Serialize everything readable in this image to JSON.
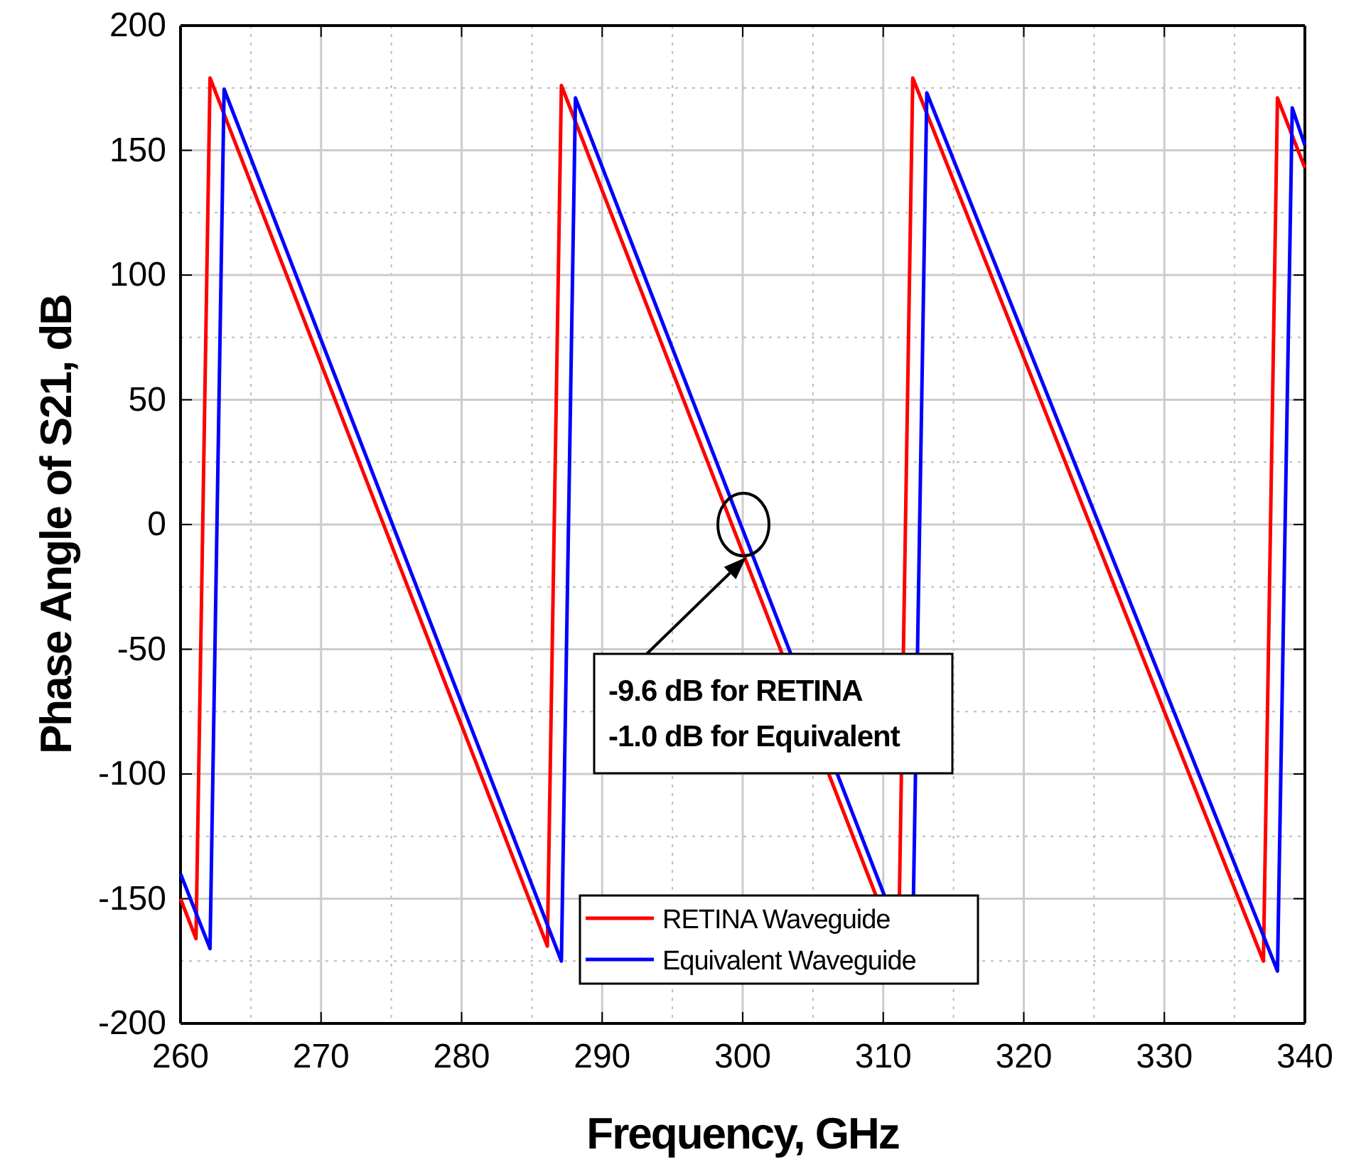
{
  "chart_data": {
    "type": "line",
    "xlabel": "Frequency, GHz",
    "ylabel": "Phase Angle of S21, dB",
    "xlim": [
      260,
      340
    ],
    "xticks": [
      260,
      270,
      280,
      290,
      300,
      310,
      320,
      330,
      340
    ],
    "ylim": [
      -200,
      200
    ],
    "yticks": [
      -200,
      -150,
      -100,
      -50,
      0,
      50,
      100,
      150,
      200
    ],
    "grid": true,
    "legend": "bottom",
    "line_style": "solid",
    "marker": "none",
    "series": [
      {
        "name": "RETINA Waveguide",
        "color": "#ff0000",
        "x": [
          260,
          261.1,
          262.1,
          286.1,
          287.1,
          309.5,
          null,
          311.15,
          312.1,
          337.05,
          338.05,
          340
        ],
        "values": [
          -150,
          -166,
          179,
          -169,
          176,
          -149,
          null,
          -149,
          179,
          -175,
          171,
          143
        ]
      },
      {
        "name": "Equivalent Waveguide",
        "color": "#0000ff",
        "x": [
          260,
          262.1,
          263.1,
          287.1,
          288.1,
          310.1,
          null,
          312.15,
          313.1,
          338.05,
          339.1,
          340
        ],
        "values": [
          -140,
          -170,
          174.5,
          -175,
          171,
          -149,
          null,
          -149,
          173,
          -179,
          167,
          152
        ]
      }
    ],
    "annotations": [
      "-9.6 dB for RETINA\n-1.0 dB for Equivalent"
    ]
  }
}
